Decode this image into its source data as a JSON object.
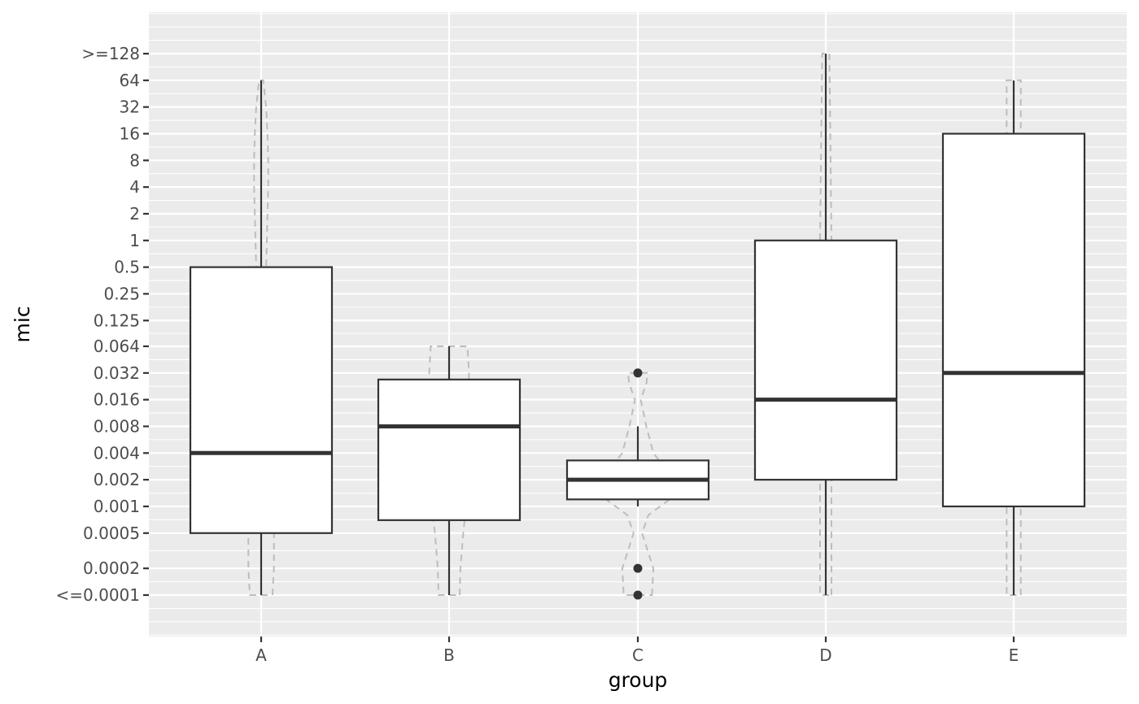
{
  "chart_data": {
    "type": "boxplot",
    "xlabel": "group",
    "ylabel": "mic",
    "y_scale": "log2",
    "y_ticks": [
      {
        "label": ">=128",
        "value": 128
      },
      {
        "label": "64",
        "value": 64
      },
      {
        "label": "32",
        "value": 32
      },
      {
        "label": "16",
        "value": 16
      },
      {
        "label": "8",
        "value": 8
      },
      {
        "label": "4",
        "value": 4
      },
      {
        "label": "2",
        "value": 2
      },
      {
        "label": "1",
        "value": 1
      },
      {
        "label": "0.5",
        "value": 0.5
      },
      {
        "label": "0.25",
        "value": 0.25
      },
      {
        "label": "0.125",
        "value": 0.125
      },
      {
        "label": "0.064",
        "value": 0.064
      },
      {
        "label": "0.032",
        "value": 0.032
      },
      {
        "label": "0.016",
        "value": 0.016
      },
      {
        "label": "0.008",
        "value": 0.008
      },
      {
        "label": "0.004",
        "value": 0.004
      },
      {
        "label": "0.002",
        "value": 0.002
      },
      {
        "label": "0.001",
        "value": 0.001
      },
      {
        "label": "0.0005",
        "value": 0.0005
      },
      {
        "label": "0.0002",
        "value": 0.0002
      },
      {
        "label": "<=0.0001",
        "value": 0.0001
      }
    ],
    "categories": [
      "A",
      "B",
      "C",
      "D",
      "E"
    ],
    "boxes": [
      {
        "group": "A",
        "whisker_low": 0.0001,
        "q1": 0.0005,
        "median": 0.004,
        "q3": 0.5,
        "whisker_high": 64,
        "outliers": []
      },
      {
        "group": "B",
        "whisker_low": 0.0001,
        "q1": 0.0007,
        "median": 0.008,
        "q3": 0.027,
        "whisker_high": 0.064,
        "outliers": []
      },
      {
        "group": "C",
        "whisker_low": 0.001,
        "q1": 0.0012,
        "median": 0.002,
        "q3": 0.0033,
        "whisker_high": 0.008,
        "outliers": [
          0.032,
          0.0002,
          0.0001
        ]
      },
      {
        "group": "D",
        "whisker_low": 0.0001,
        "q1": 0.002,
        "median": 0.016,
        "q3": 1,
        "whisker_high": 128,
        "outliers": []
      },
      {
        "group": "E",
        "whisker_low": 0.0001,
        "q1": 0.001,
        "median": 0.032,
        "q3": 16,
        "whisker_high": 64,
        "outliers": []
      }
    ],
    "violins": [
      {
        "group": "A",
        "profile": [
          [
            0.0001,
            0.16
          ],
          [
            0.0002,
            0.18
          ],
          [
            0.0005,
            0.18
          ],
          [
            0.001,
            0.16
          ],
          [
            0.002,
            0.18
          ],
          [
            0.004,
            0.2
          ],
          [
            0.008,
            0.19
          ],
          [
            0.016,
            0.15
          ],
          [
            0.032,
            0.08
          ],
          [
            0.064,
            0.07
          ],
          [
            0.125,
            0.06
          ],
          [
            0.25,
            0.06
          ],
          [
            0.5,
            0.07
          ],
          [
            1,
            0.08
          ],
          [
            2,
            0.09
          ],
          [
            4,
            0.1
          ],
          [
            8,
            0.1
          ],
          [
            16,
            0.09
          ],
          [
            32,
            0.07
          ],
          [
            64,
            0.03
          ]
        ]
      },
      {
        "group": "B",
        "profile": [
          [
            0.0001,
            0.15
          ],
          [
            0.0002,
            0.16
          ],
          [
            0.0005,
            0.2
          ],
          [
            0.001,
            0.24
          ],
          [
            0.002,
            0.27
          ],
          [
            0.004,
            0.3
          ],
          [
            0.008,
            0.3
          ],
          [
            0.016,
            0.28
          ],
          [
            0.032,
            0.28
          ],
          [
            0.064,
            0.26
          ]
        ]
      },
      {
        "group": "C",
        "profile": [
          [
            0.0001,
            0.2
          ],
          [
            0.0002,
            0.22
          ],
          [
            0.0005,
            0.06
          ],
          [
            0.0008,
            0.15
          ],
          [
            0.0012,
            0.45
          ],
          [
            0.0016,
            0.62
          ],
          [
            0.002,
            0.64
          ],
          [
            0.0028,
            0.6
          ],
          [
            0.0033,
            0.3
          ],
          [
            0.004,
            0.22
          ],
          [
            0.008,
            0.12
          ],
          [
            0.016,
            0.04
          ],
          [
            0.024,
            0.12
          ],
          [
            0.032,
            0.14
          ]
        ]
      },
      {
        "group": "D",
        "profile": [
          [
            0.0001,
            0.08
          ],
          [
            0.0002,
            0.08
          ],
          [
            0.001,
            0.08
          ],
          [
            0.016,
            0.08
          ],
          [
            1,
            0.08
          ],
          [
            32,
            0.06
          ],
          [
            128,
            0.05
          ]
        ]
      },
      {
        "group": "E",
        "profile": [
          [
            0.0001,
            0.1
          ],
          [
            0.0002,
            0.1
          ],
          [
            0.001,
            0.1
          ],
          [
            0.032,
            0.1
          ],
          [
            1,
            0.1
          ],
          [
            16,
            0.1
          ],
          [
            64,
            0.1
          ]
        ]
      }
    ],
    "colors": {
      "panel_background": "#ebebeb",
      "grid": "#ffffff",
      "box_fill": "#ffffff",
      "box_line": "#333333",
      "violin_line": "#bdbdbd",
      "tick": "#333333",
      "tick_text": "#4d4d4d"
    },
    "grid": true,
    "legend": "none"
  }
}
